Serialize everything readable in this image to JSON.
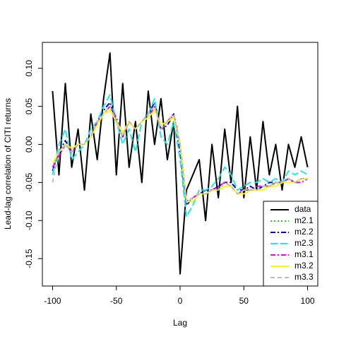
{
  "chart_data": {
    "type": "line",
    "xlabel": "Lag",
    "ylabel": "Lead-lag correlation of CITI returns",
    "x": [
      -100,
      -95,
      -90,
      -85,
      -80,
      -75,
      -70,
      -65,
      -60,
      -55,
      -50,
      -45,
      -40,
      -35,
      -30,
      -25,
      -20,
      -15,
      -10,
      -5,
      0,
      5,
      10,
      15,
      20,
      25,
      30,
      35,
      40,
      45,
      50,
      55,
      60,
      65,
      70,
      75,
      80,
      85,
      90,
      95,
      100
    ],
    "xlim": [
      -108,
      108
    ],
    "ylim": [
      -0.186,
      0.134
    ],
    "xticks": [
      -100,
      -50,
      0,
      50,
      100
    ],
    "yticks": [
      -0.15,
      {
        "value": -0.1,
        "label": "-0.10"
      },
      -0.05,
      {
        "value": 0,
        "label": "0.00"
      },
      0.05,
      {
        "value": 0.1,
        "label": "0.10"
      }
    ],
    "legend": "bottom-right",
    "series": [
      {
        "name": "data",
        "color": "#000000",
        "dash": "none",
        "values": [
          0.07,
          -0.04,
          0.08,
          -0.03,
          0.02,
          -0.06,
          0.04,
          -0.02,
          0.06,
          0.12,
          -0.04,
          0.08,
          -0.03,
          0.03,
          -0.05,
          0.07,
          0.0,
          0.06,
          -0.02,
          0.03,
          -0.17,
          -0.06,
          -0.04,
          -0.02,
          -0.1,
          0.0,
          -0.07,
          0.02,
          -0.05,
          0.05,
          -0.07,
          0.01,
          -0.06,
          0.03,
          -0.04,
          0.0,
          -0.06,
          0.0,
          -0.03,
          0.01,
          -0.03
        ]
      },
      {
        "name": "m2.1",
        "color": "#22cc22",
        "dash": "2,3",
        "values": [
          -0.03,
          -0.01,
          0.0,
          -0.01,
          0.0,
          0.0,
          0.01,
          0.03,
          0.04,
          0.05,
          0.03,
          0.01,
          0.03,
          0.02,
          0.03,
          0.04,
          0.05,
          0.02,
          0.03,
          0.04,
          0.0,
          -0.075,
          -0.07,
          -0.065,
          -0.065,
          -0.06,
          -0.06,
          -0.05,
          -0.055,
          -0.065,
          -0.06,
          -0.06,
          -0.06,
          -0.055,
          -0.055,
          -0.05,
          -0.05,
          -0.045,
          -0.05,
          -0.045,
          -0.045
        ]
      },
      {
        "name": "m2.2",
        "color": "#0000cc",
        "dash": "7,3,2,3",
        "values": [
          -0.035,
          -0.01,
          0.005,
          -0.01,
          0.0,
          0.0,
          0.01,
          0.03,
          0.045,
          0.055,
          0.03,
          0.01,
          0.03,
          0.02,
          0.03,
          0.04,
          0.055,
          0.02,
          0.025,
          0.04,
          -0.01,
          -0.08,
          -0.07,
          -0.065,
          -0.06,
          -0.06,
          -0.055,
          -0.05,
          -0.05,
          -0.06,
          -0.06,
          -0.055,
          -0.06,
          -0.055,
          -0.05,
          -0.05,
          -0.05,
          -0.045,
          -0.05,
          -0.045,
          -0.045
        ]
      },
      {
        "name": "m2.3",
        "color": "#22e5e5",
        "dash": "10,4",
        "values": [
          -0.04,
          0.0,
          0.02,
          -0.02,
          -0.01,
          0.0,
          0.02,
          0.03,
          0.05,
          0.065,
          0.03,
          0.0,
          0.02,
          -0.01,
          0.03,
          0.04,
          0.06,
          0.01,
          0.0,
          0.03,
          -0.02,
          -0.095,
          -0.08,
          -0.06,
          -0.06,
          -0.055,
          -0.045,
          -0.03,
          -0.04,
          -0.06,
          -0.055,
          -0.05,
          -0.05,
          -0.045,
          -0.05,
          -0.045,
          -0.05,
          -0.035,
          -0.04,
          -0.035,
          -0.04
        ]
      },
      {
        "name": "m3.1",
        "color": "#ee00ee",
        "dash": "7,3,2,3",
        "values": [
          -0.03,
          -0.015,
          0.0,
          -0.01,
          0.0,
          0.0,
          0.01,
          0.03,
          0.04,
          0.05,
          0.035,
          0.01,
          0.03,
          0.02,
          0.03,
          0.035,
          0.05,
          0.02,
          0.03,
          0.04,
          0.0,
          -0.075,
          -0.07,
          -0.065,
          -0.065,
          -0.06,
          -0.055,
          -0.05,
          -0.055,
          -0.065,
          -0.06,
          -0.06,
          -0.055,
          -0.055,
          -0.055,
          -0.05,
          -0.05,
          -0.045,
          -0.05,
          -0.05,
          -0.045
        ]
      },
      {
        "name": "m3.2",
        "color": "#ffff00",
        "dash": "none",
        "values": [
          -0.025,
          -0.01,
          0.0,
          -0.005,
          0.0,
          0.0,
          0.01,
          0.025,
          0.04,
          0.045,
          0.03,
          0.015,
          0.03,
          0.02,
          0.03,
          0.035,
          0.045,
          0.025,
          0.03,
          0.035,
          0.0,
          -0.075,
          -0.075,
          -0.065,
          -0.065,
          -0.06,
          -0.06,
          -0.055,
          -0.055,
          -0.065,
          -0.065,
          -0.06,
          -0.06,
          -0.06,
          -0.055,
          -0.055,
          -0.05,
          -0.05,
          -0.05,
          -0.045,
          -0.045
        ]
      },
      {
        "name": "m3.3",
        "color": "#bbbbbb",
        "dash": "6,4",
        "values": [
          -0.05,
          -0.01,
          0.0,
          -0.01,
          0.0,
          0.0,
          0.01,
          0.03,
          0.04,
          0.05,
          0.03,
          0.01,
          0.03,
          0.02,
          0.03,
          0.04,
          0.05,
          0.02,
          0.03,
          0.04,
          0.0,
          -0.075,
          -0.07,
          -0.065,
          -0.065,
          -0.06,
          -0.06,
          -0.05,
          -0.055,
          -0.065,
          -0.06,
          -0.06,
          -0.06,
          -0.055,
          -0.055,
          -0.05,
          -0.05,
          -0.045,
          -0.05,
          -0.045,
          -0.045
        ]
      }
    ]
  }
}
